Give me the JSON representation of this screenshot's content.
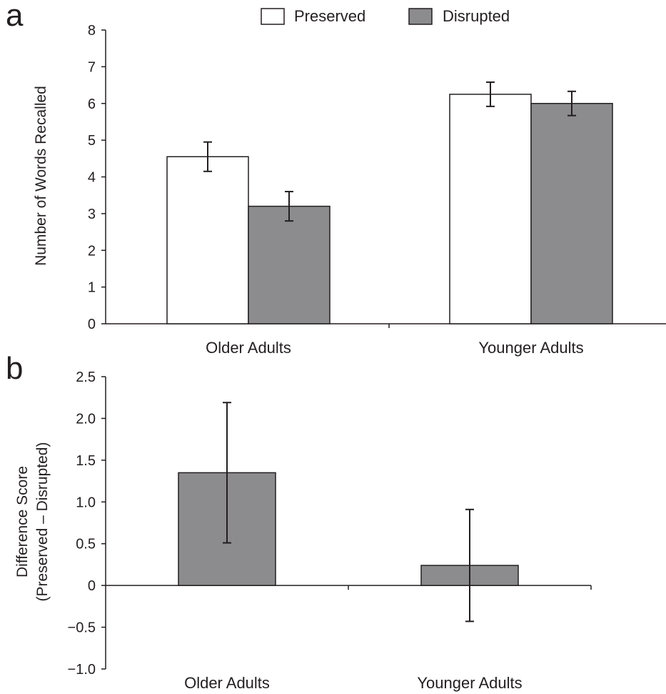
{
  "colors": {
    "preserved": "#ffffff",
    "disrupted": "#8c8c8e",
    "ink": "#231f20"
  },
  "legend": {
    "preserved_label": "Preserved",
    "disrupted_label": "Disrupted"
  },
  "chart_data": [
    {
      "panel": "a",
      "type": "bar",
      "categories": [
        "Older Adults",
        "Younger Adults"
      ],
      "series": [
        {
          "name": "Preserved",
          "values": [
            4.55,
            6.25
          ],
          "errors": [
            0.4,
            0.33
          ]
        },
        {
          "name": "Disrupted",
          "values": [
            3.2,
            6.0
          ],
          "errors": [
            0.4,
            0.33
          ]
        }
      ],
      "xlabel": "",
      "ylabel": "Number of Words Recalled",
      "ylim": [
        0,
        8
      ],
      "yticks": [
        "0",
        "1",
        "2",
        "3",
        "4",
        "5",
        "6",
        "7",
        "8"
      ],
      "legend_position": "top-center",
      "grid": false
    },
    {
      "panel": "b",
      "type": "bar",
      "categories": [
        "Older Adults",
        "Younger Adults"
      ],
      "series": [
        {
          "name": "",
          "values": [
            1.35,
            0.24
          ],
          "errors": [
            0.84,
            0.67
          ]
        }
      ],
      "xlabel": "",
      "ylabel_line1": "Difference Score",
      "ylabel_line2": "(Preserved – Disrupted)",
      "ylim": [
        -1.0,
        2.5
      ],
      "yticks": [
        "−1.0",
        "−0.5",
        "0",
        "0.5",
        "1.0",
        "1.5",
        "2.0",
        "2.5"
      ],
      "grid": false
    }
  ]
}
